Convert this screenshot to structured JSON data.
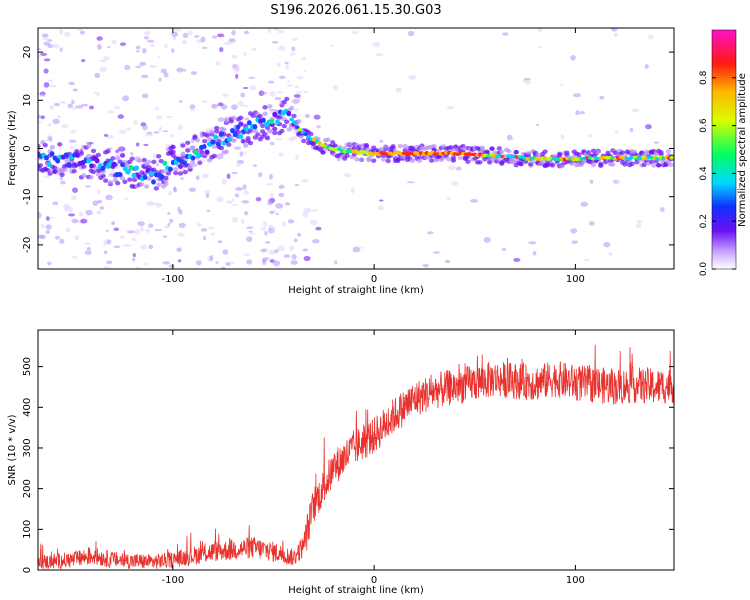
{
  "title": "S196.2026.061.15.30.G03",
  "chart_data": [
    {
      "type": "heatmap",
      "xlabel": "Height of straight line (km)",
      "ylabel": "Frequency (Hz)",
      "xlim": [
        -167,
        149
      ],
      "ylim": [
        -25,
        25
      ],
      "xticks": [
        -100,
        0,
        100
      ],
      "xtick_labels": [
        "-100",
        "0",
        "100"
      ],
      "yticks": [
        -20,
        -10,
        0,
        10,
        20
      ],
      "ytick_labels": [
        "-20",
        "-10",
        "0",
        "10",
        "20"
      ],
      "ridge": [
        [
          -165,
          -2
        ],
        [
          -150,
          -2.5
        ],
        [
          -140,
          -3
        ],
        [
          -130,
          -4
        ],
        [
          -120,
          -5
        ],
        [
          -110,
          -6
        ],
        [
          -100,
          -3
        ],
        [
          -90,
          -1
        ],
        [
          -80,
          1
        ],
        [
          -70,
          3
        ],
        [
          -60,
          4.5
        ],
        [
          -50,
          6
        ],
        [
          -43,
          7
        ],
        [
          -35,
          3
        ],
        [
          -25,
          0.5
        ],
        [
          -15,
          -0.5
        ],
        [
          0,
          -1
        ],
        [
          20,
          -1
        ],
        [
          40,
          -1
        ],
        [
          60,
          -1.5
        ],
        [
          75,
          -2
        ],
        [
          90,
          -2.2
        ],
        [
          110,
          -2
        ],
        [
          130,
          -2
        ],
        [
          149,
          -2
        ]
      ],
      "colorbar": {
        "label": "Normalized spectral amplitude",
        "range": [
          0,
          1
        ],
        "ticks": [
          0.0,
          0.2,
          0.4,
          0.6,
          0.8
        ],
        "tick_labels": [
          "0.0",
          "0.2",
          "0.4",
          "0.6",
          "0.8"
        ]
      }
    },
    {
      "type": "line",
      "xlabel": "Height of straight line (km)",
      "ylabel": "SNR (10 * v/v)",
      "xlim": [
        -167,
        149
      ],
      "ylim": [
        0,
        590
      ],
      "xticks": [
        -100,
        0,
        100
      ],
      "xtick_labels": [
        "-100",
        "0",
        "100"
      ],
      "yticks": [
        0,
        100,
        200,
        300,
        400,
        500
      ],
      "ytick_labels": [
        "0",
        "100",
        "200",
        "300",
        "400",
        "500"
      ],
      "color": "#e8322e",
      "series": [
        {
          "name": "SNR",
          "x": [
            -167,
            -150,
            -140,
            -130,
            -120,
            -110,
            -100,
            -90,
            -80,
            -70,
            -60,
            -50,
            -40,
            -35,
            -30,
            -20,
            -10,
            0,
            10,
            20,
            30,
            40,
            50,
            60,
            70,
            80,
            90,
            100,
            110,
            120,
            130,
            140,
            149
          ],
          "values": [
            18,
            25,
            35,
            25,
            22,
            20,
            25,
            35,
            45,
            50,
            55,
            45,
            30,
            60,
            160,
            250,
            300,
            330,
            380,
            420,
            440,
            450,
            460,
            470,
            465,
            460,
            470,
            460,
            455,
            450,
            455,
            450,
            455
          ]
        }
      ]
    }
  ]
}
